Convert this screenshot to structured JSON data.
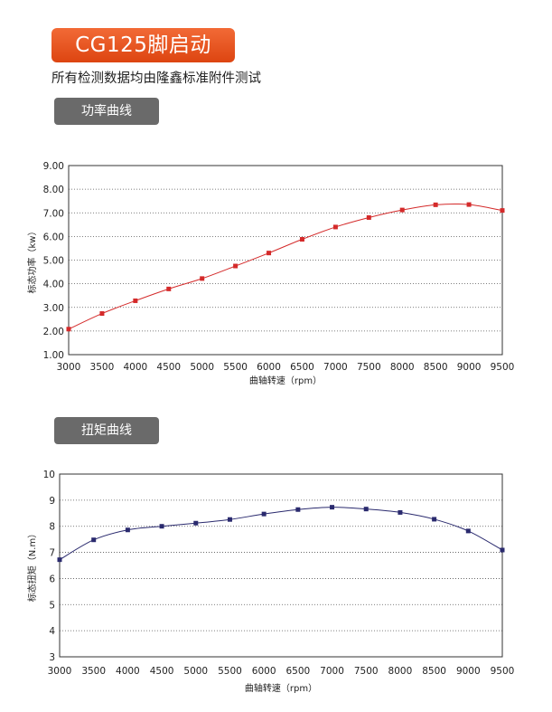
{
  "header": {
    "banner_title": "CG125脚启动",
    "subtitle": "所有检测数据均由隆鑫标准附件测试"
  },
  "sections": {
    "power_title": "功率曲线",
    "torque_title": "扭矩曲线"
  },
  "chart_data": [
    {
      "type": "line",
      "xlabel": "曲轴转速（rpm）",
      "ylabel": "标态功率（kw）",
      "x": [
        3000,
        3500,
        4000,
        4500,
        5000,
        5500,
        6000,
        6500,
        7000,
        7500,
        8000,
        8500,
        9000,
        9500
      ],
      "series": [
        {
          "values": [
            2.08,
            2.74,
            3.28,
            3.78,
            4.22,
            4.75,
            5.3,
            5.88,
            6.4,
            6.8,
            7.12,
            7.34,
            7.35,
            7.1
          ]
        }
      ],
      "xticks": [
        "3000",
        "3500",
        "4000",
        "4500",
        "5000",
        "5500",
        "6000",
        "6500",
        "7000",
        "7500",
        "8000",
        "8500",
        "9000",
        "9500"
      ],
      "yticks": [
        "1.00",
        "2.00",
        "3.00",
        "4.00",
        "5.00",
        "6.00",
        "7.00",
        "8.00",
        "9.00"
      ],
      "xlim": [
        3000,
        9500
      ],
      "ylim": [
        1,
        9
      ],
      "grid": "horizontal-dotted",
      "color": "#d42a2a"
    },
    {
      "type": "line",
      "xlabel": "曲轴转速（rpm）",
      "ylabel": "标态扭矩（N.m）",
      "x": [
        3000,
        3500,
        4000,
        4500,
        5000,
        5500,
        6000,
        6500,
        7000,
        7500,
        8000,
        8500,
        9000,
        9500
      ],
      "series": [
        {
          "values": [
            6.72,
            7.48,
            7.86,
            8.0,
            8.12,
            8.26,
            8.47,
            8.64,
            8.73,
            8.66,
            8.53,
            8.27,
            7.82,
            7.09
          ]
        }
      ],
      "xticks": [
        "3000",
        "3500",
        "4000",
        "4500",
        "5000",
        "5500",
        "6000",
        "6500",
        "7000",
        "7500",
        "8000",
        "8500",
        "9000",
        "9500"
      ],
      "yticks": [
        "3",
        "4",
        "5",
        "6",
        "7",
        "8",
        "9",
        "10"
      ],
      "xlim": [
        3000,
        9500
      ],
      "ylim": [
        3,
        10
      ],
      "grid": "horizontal-dotted",
      "color": "#2a2a6e"
    }
  ]
}
